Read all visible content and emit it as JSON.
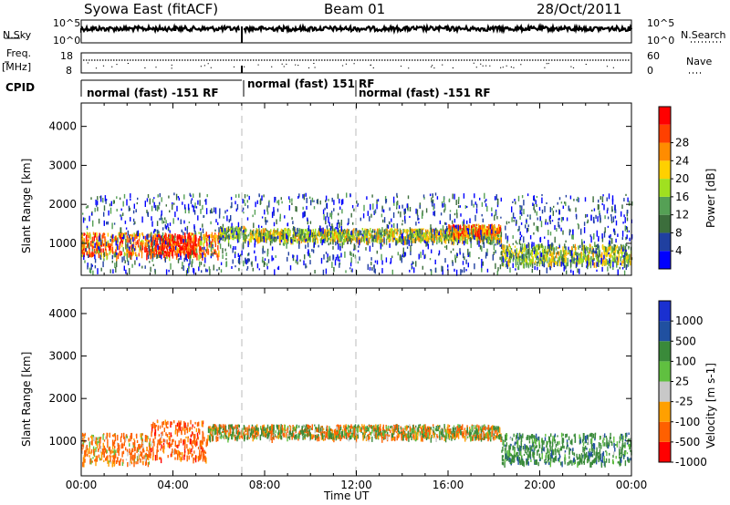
{
  "header": {
    "station": "Syowa East (fitACF)",
    "beam": "Beam 01",
    "date": "28/Oct/2011"
  },
  "strips": {
    "nsky_label": "N.Sky",
    "nsky_top": "10^5",
    "nsky_bottom": "10^0",
    "nsearch_label": "N.Search",
    "nsearch_top": "10^5",
    "nsearch_bottom": "10^0",
    "freq_label": "Freq.",
    "freq_unit": "[MHz]",
    "freq_top": "18",
    "freq_bottom": "8",
    "nave_label": "Nave",
    "nave_top": "60",
    "nave_bottom": "0",
    "cpid_label": "CPID",
    "cpid_segments": [
      "normal (fast) -151 RF",
      "normal (fast) 151",
      "RF",
      "normal (fast) -151 RF"
    ]
  },
  "colors": {
    "power": [
      "#0000ff",
      "#2040a0",
      "#3c6e3c",
      "#55a055",
      "#a0e020",
      "#ffd000",
      "#ff8c00",
      "#ff4000",
      "#ff0000"
    ],
    "velocity": [
      "#ff0000",
      "#ff6000",
      "#ffa000",
      "#c8c8c8",
      "#60c040",
      "#3a8a3a",
      "#2050a0",
      "#1a30d0"
    ]
  },
  "chart_data": [
    {
      "type": "heatmap",
      "title": "",
      "xlabel": "Time UT",
      "ylabel": "Slant Range [km]",
      "x_ticks": [
        "00:00",
        "04:00",
        "08:00",
        "12:00",
        "16:00",
        "20:00",
        "00:00"
      ],
      "y_ticks": [
        1000,
        2000,
        3000,
        4000
      ],
      "xlim_hours": [
        0,
        24
      ],
      "ylim": [
        180,
        4600
      ],
      "colorbar": {
        "label": "Power [dB]",
        "ticks": [
          "4",
          "8",
          "12",
          "16",
          "20",
          "24",
          "28"
        ],
        "range": [
          0,
          30
        ]
      },
      "echo_bands": [
        {
          "from_hr": 0.0,
          "to_hr": 6.0,
          "range_km": [
            700,
            1300
          ],
          "value": 22
        },
        {
          "from_hr": 3.0,
          "to_hr": 5.0,
          "range_km": [
            750,
            1250
          ],
          "value": 28
        },
        {
          "from_hr": 6.0,
          "to_hr": 7.2,
          "range_km": [
            1150,
            1450
          ],
          "value": 14
        },
        {
          "from_hr": 7.3,
          "to_hr": 18.3,
          "range_km": [
            1100,
            1400
          ],
          "value": 16
        },
        {
          "from_hr": 16.0,
          "to_hr": 18.3,
          "range_km": [
            1250,
            1500
          ],
          "value": 22
        },
        {
          "from_hr": 18.3,
          "to_hr": 24.0,
          "range_km": [
            500,
            1000
          ],
          "value": 14
        },
        {
          "from_hr": 0.0,
          "to_hr": 24.0,
          "range_km": [
            300,
            2300
          ],
          "value": 6
        }
      ]
    },
    {
      "type": "heatmap",
      "title": "",
      "xlabel": "Time UT",
      "ylabel": "Slant Range [km]",
      "x_ticks": [
        "00:00",
        "04:00",
        "08:00",
        "12:00",
        "16:00",
        "20:00",
        "00:00"
      ],
      "y_ticks": [
        1000,
        2000,
        3000,
        4000
      ],
      "xlim_hours": [
        0,
        24
      ],
      "ylim": [
        180,
        4600
      ],
      "colorbar": {
        "label": "Velocity [m s-1]",
        "ticks": [
          "1000",
          "500",
          "100",
          "25",
          "-25",
          "-100",
          "-500",
          "-1000"
        ]
      },
      "echo_bands": [
        {
          "from_hr": 0.0,
          "to_hr": 3.0,
          "range_km": [
            500,
            1200
          ],
          "value": -200
        },
        {
          "from_hr": 3.0,
          "to_hr": 5.5,
          "range_km": [
            600,
            1500
          ],
          "value": -300
        },
        {
          "from_hr": 5.5,
          "to_hr": 18.3,
          "range_km": [
            1100,
            1400
          ],
          "value": 0
        },
        {
          "from_hr": 18.3,
          "to_hr": 24.0,
          "range_km": [
            500,
            1200
          ],
          "value": 300
        }
      ]
    }
  ]
}
